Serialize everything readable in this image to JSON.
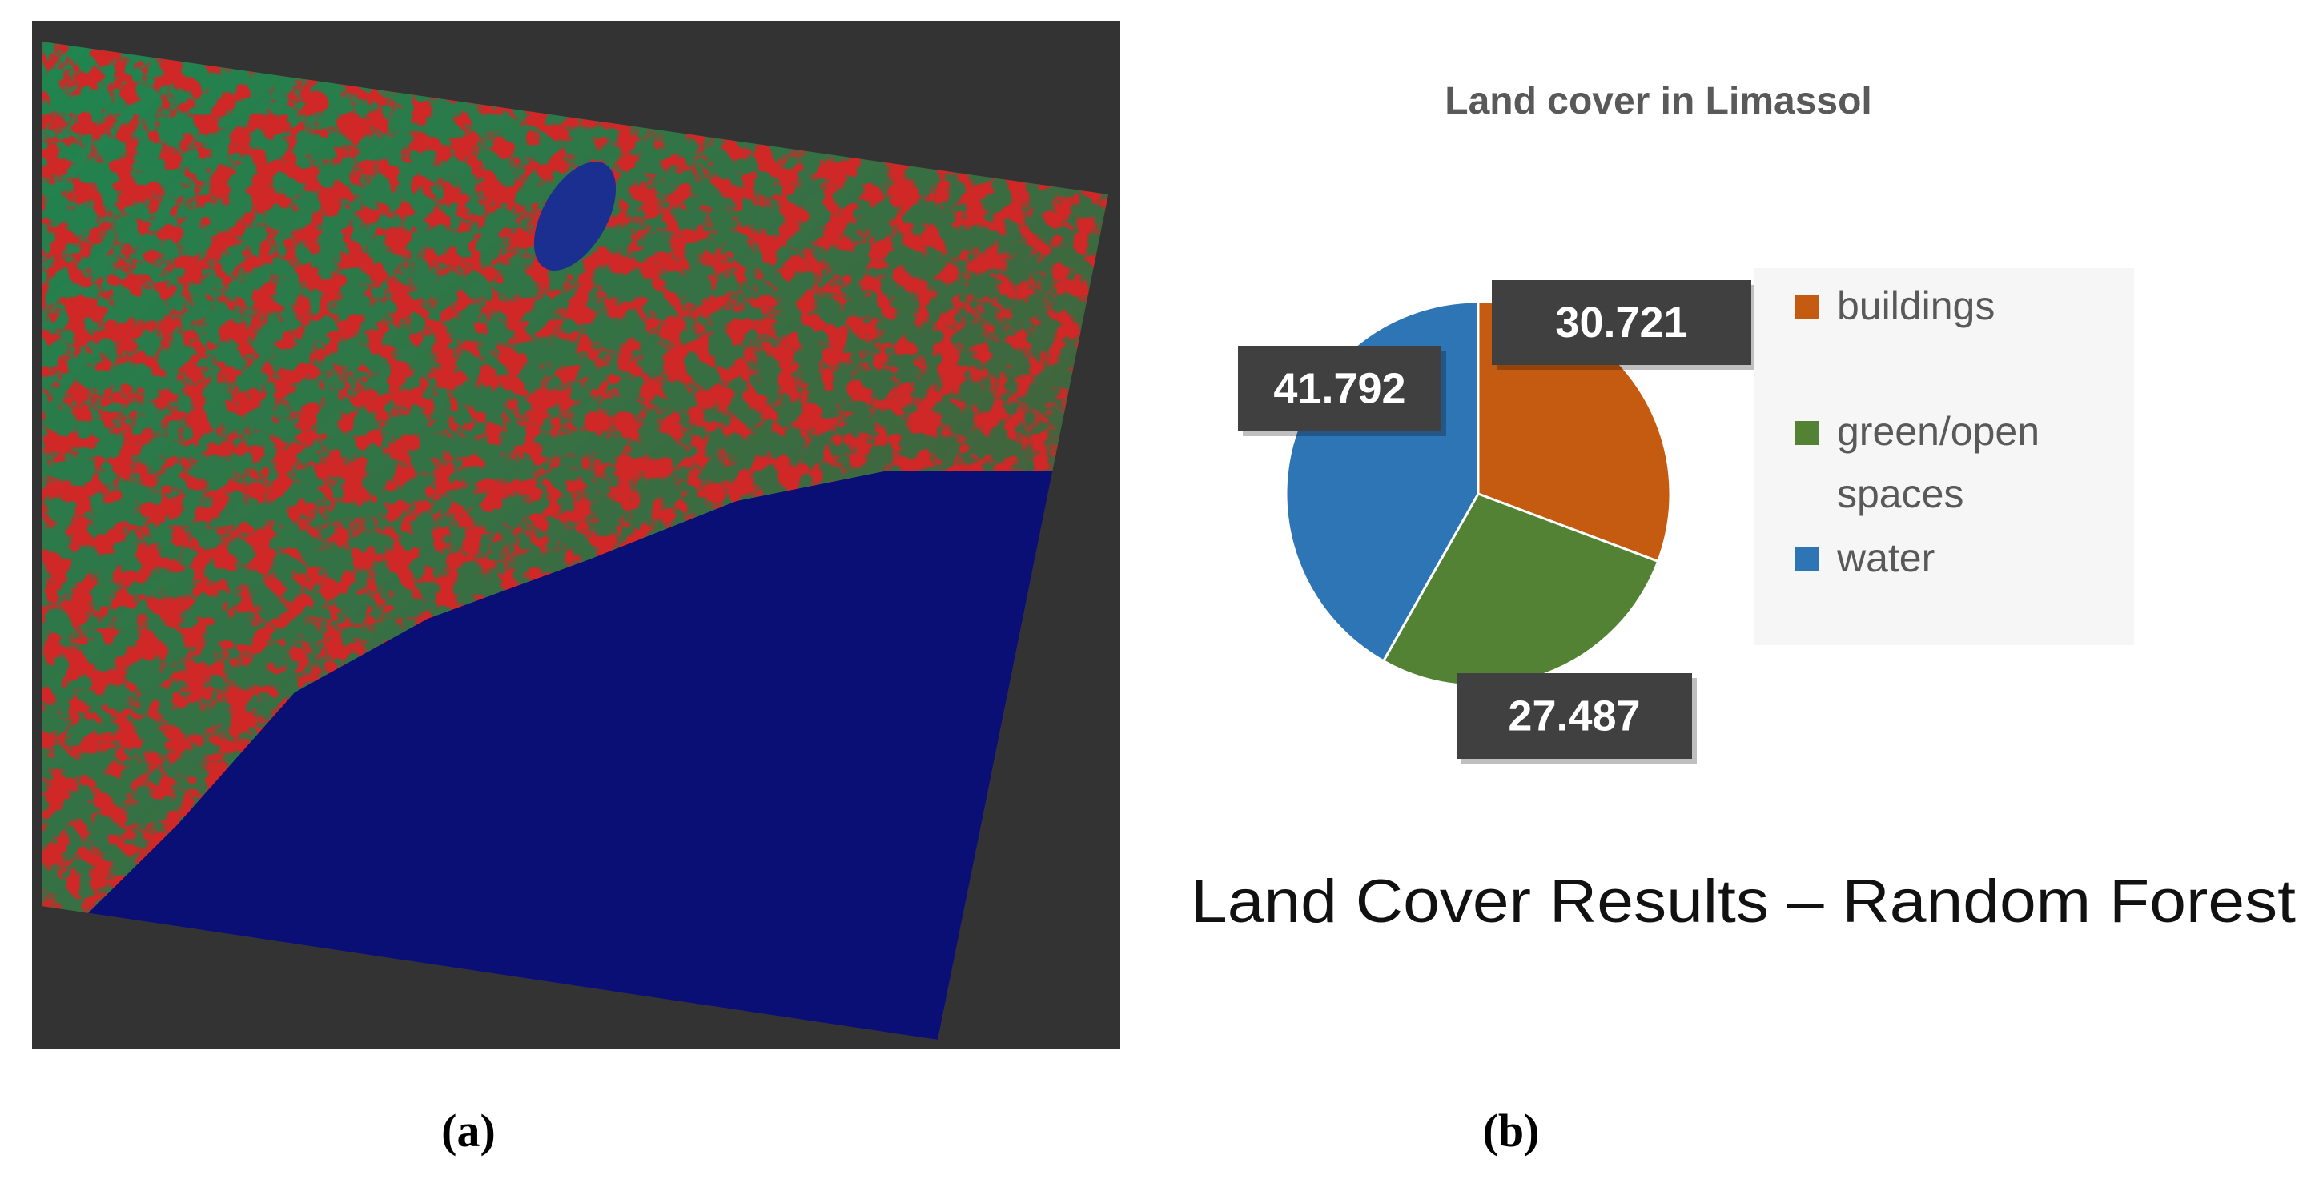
{
  "chart_data": {
    "type": "pie",
    "title": "Land cover in Limassol",
    "categories": [
      "buildings",
      "green/open spaces",
      "water"
    ],
    "values": [
      30.721,
      27.487,
      41.792
    ],
    "colors": [
      "#c55a11",
      "#548235",
      "#2e75b6"
    ]
  },
  "caption": "Land Cover Results – Random Forest",
  "panel_labels": [
    "(a)",
    "(b)"
  ]
}
